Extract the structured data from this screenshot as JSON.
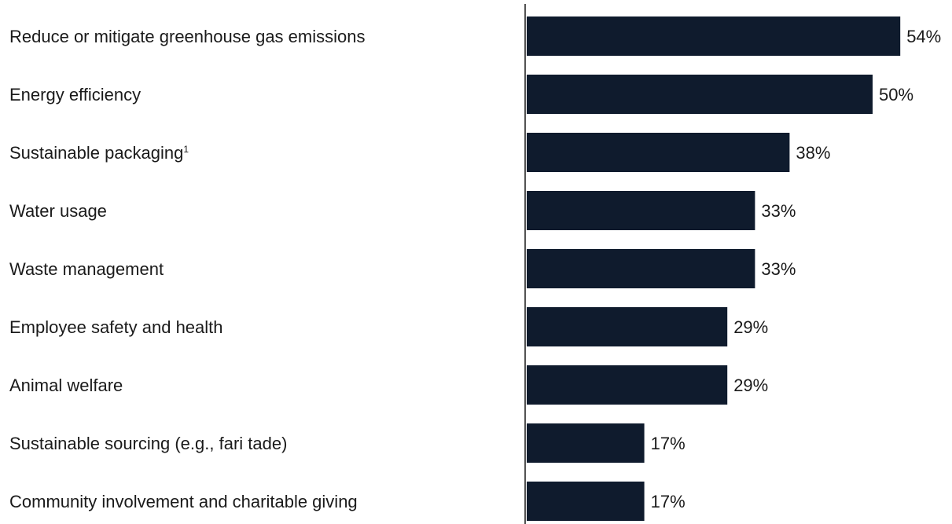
{
  "chart_data": {
    "type": "bar",
    "orientation": "horizontal",
    "categories": [
      "Reduce or mitigate greenhouse gas emissions",
      "Energy efficiency",
      "Sustainable packaging",
      "Water usage",
      "Waste management",
      "Employee safety and health",
      "Animal welfare",
      "Sustainable sourcing (e.g., fari tade)",
      "Community involvement and charitable giving"
    ],
    "category_footnotes": [
      "",
      "",
      "1",
      "",
      "",
      "",
      "",
      "",
      ""
    ],
    "values": [
      54,
      50,
      38,
      33,
      33,
      29,
      29,
      17,
      17
    ],
    "value_labels": [
      "54%",
      "50%",
      "38%",
      "33%",
      "33%",
      "29%",
      "29%",
      "17%",
      "17%"
    ],
    "value_unit": "%",
    "xlim": [
      0,
      60
    ],
    "grid": false,
    "legend": "none",
    "colors": {
      "bar": "#0f1b2d",
      "axis": "#1a1a1a",
      "text": "#1a1a1a"
    }
  }
}
